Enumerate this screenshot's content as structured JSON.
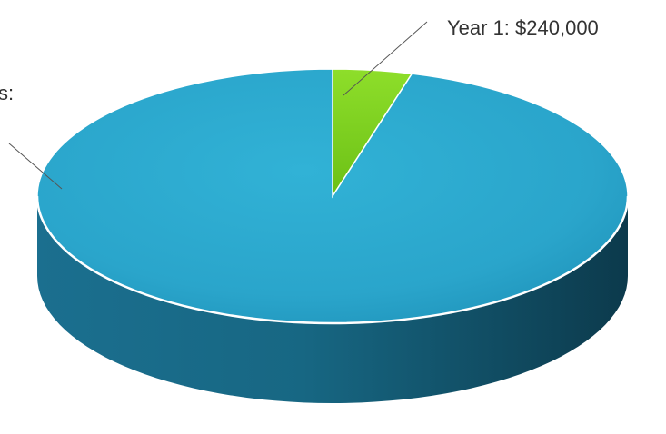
{
  "chart_data": {
    "type": "pie",
    "style": "3d",
    "title": "",
    "slices": [
      {
        "label": "Year 1: $240,000",
        "value": 240000,
        "color": "#7ccf1c"
      },
      {
        "label": "s:",
        "value": 5300000,
        "color": "#2aa6cc",
        "side_color": "#155a75"
      }
    ],
    "legend": "none"
  }
}
